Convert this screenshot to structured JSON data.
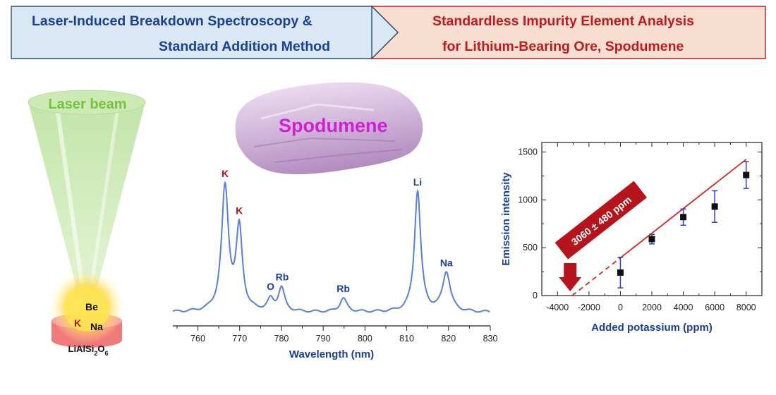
{
  "header": {
    "left_line1": "Laser-Induced Breakdown Spectroscopy &",
    "left_line2": "Standard Addition Method",
    "right_line1": "Standardless Impurity Element Analysis",
    "right_line2": "for Lithium-Bearing Ore, Spodumene"
  },
  "laser": {
    "beam_label": "Laser beam",
    "elements": [
      "Be",
      "K",
      "Na"
    ],
    "substrate_formula": "LiAlSi2O6"
  },
  "mineral": {
    "name": "Spodumene"
  },
  "colors": {
    "header_blue_bg": "#d9e8f4",
    "header_blue_text": "#1b3f95",
    "header_red_bg": "#f8ddd1",
    "header_red_text": "#bf1a20",
    "spectrum_line": "#5a7fd6",
    "potassium_label": "#b5141c",
    "other_label": "#1b3f95",
    "fit_line": "#d42b21",
    "mineral_label": "#d11fd6"
  },
  "chart_data": [
    {
      "type": "line",
      "xlabel": "Wavelength (nm)",
      "ylabel": "",
      "xlim": [
        754,
        830
      ],
      "xticks": [
        760,
        770,
        780,
        790,
        800,
        810,
        820,
        830
      ],
      "y_axis_shown": false,
      "peaks": [
        {
          "label": "K",
          "x": 766.5,
          "height": 1.0
        },
        {
          "label": "K",
          "x": 769.9,
          "height": 0.66
        },
        {
          "label": "O",
          "x": 777.4,
          "height": 0.09
        },
        {
          "label": "Rb",
          "x": 780.0,
          "height": 0.19
        },
        {
          "label": "Rb",
          "x": 794.8,
          "height": 0.11
        },
        {
          "label": "Li",
          "x": 812.6,
          "height": 0.98
        },
        {
          "label": "Na",
          "x": 819.5,
          "height": 0.32
        }
      ]
    },
    {
      "type": "scatter",
      "xlabel": "Added potassium (ppm)",
      "ylabel": "Emission intensity",
      "xlim": [
        -5000,
        9000
      ],
      "ylim": [
        0,
        1600
      ],
      "xticks": [
        -4000,
        -2000,
        0,
        2000,
        4000,
        6000,
        8000
      ],
      "yticks": [
        0,
        500,
        1000,
        1500
      ],
      "points": [
        {
          "x": 0,
          "y": 240,
          "err": 160
        },
        {
          "x": 2000,
          "y": 590,
          "err": 50
        },
        {
          "x": 4000,
          "y": 820,
          "err": 85
        },
        {
          "x": 6000,
          "y": 930,
          "err": 165
        },
        {
          "x": 8000,
          "y": 1260,
          "err": 140
        }
      ],
      "fit_line": {
        "x_from": -3060,
        "x_data_start": 0,
        "x_to": 8000,
        "slope": 0.1287,
        "intercept": 394
      },
      "annotation": "3060 ± 480 ppm"
    }
  ]
}
